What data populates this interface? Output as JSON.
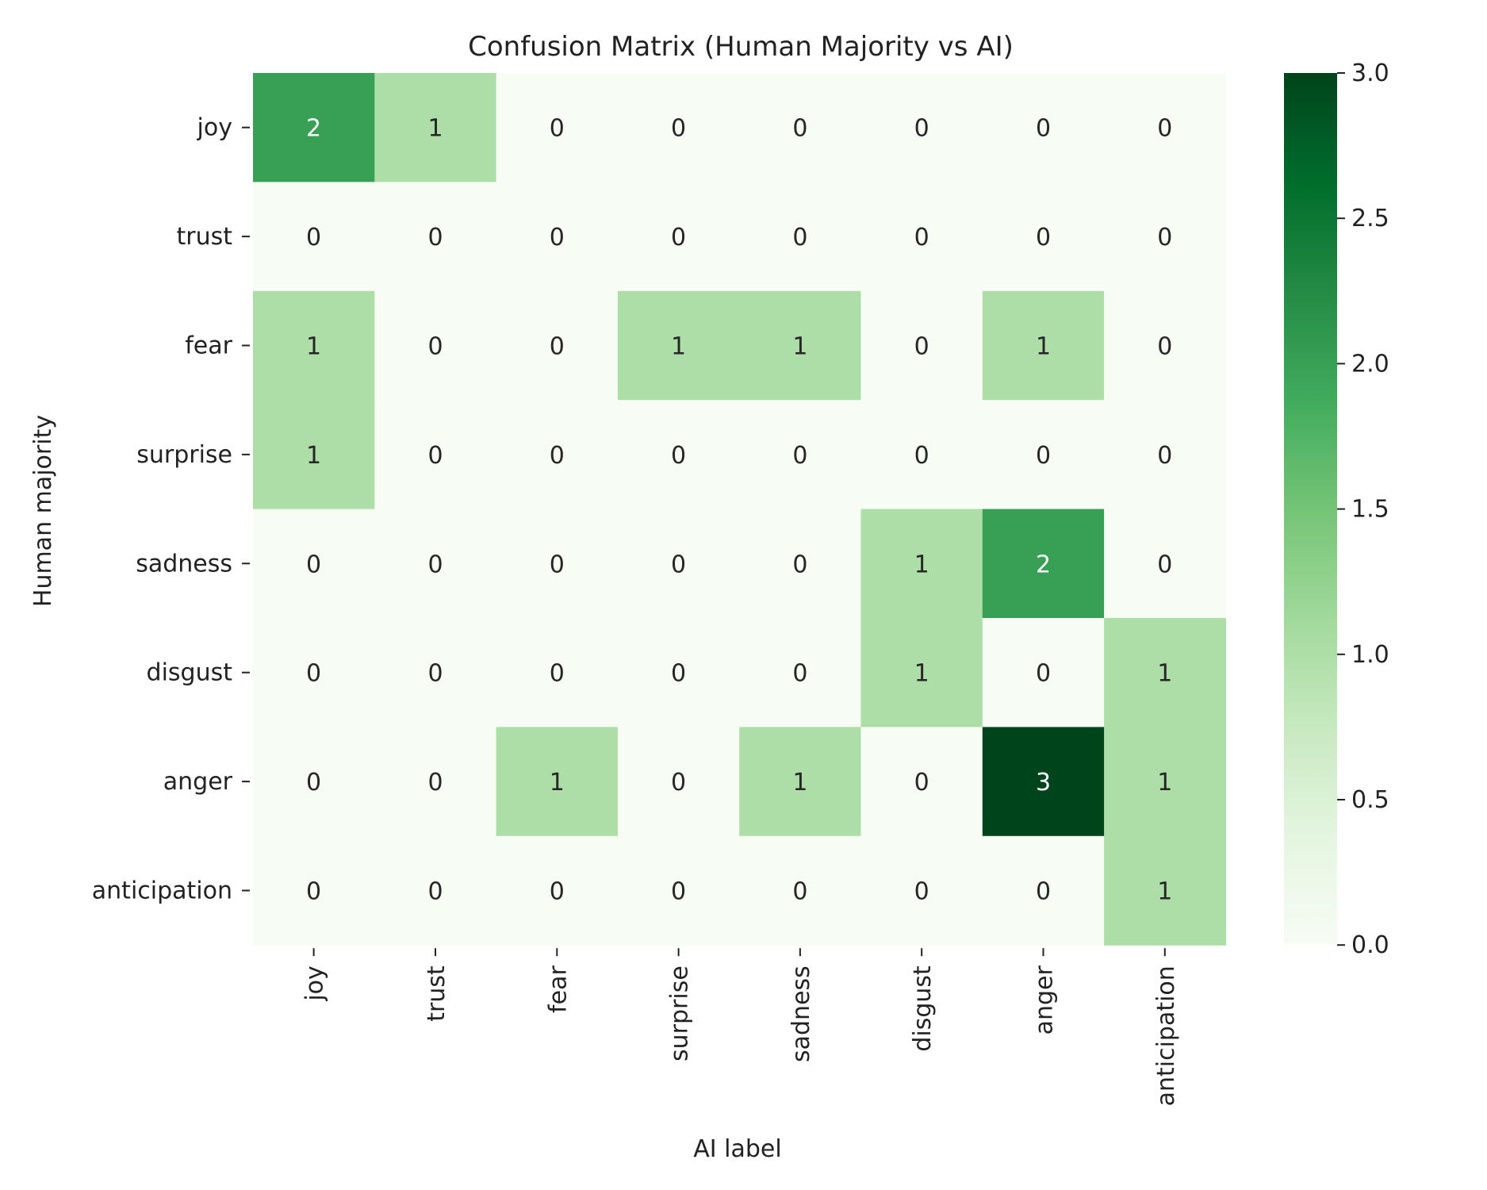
{
  "chart_data": {
    "type": "heatmap",
    "title": "Confusion Matrix (Human Majority vs AI)",
    "xlabel": "AI label",
    "ylabel": "Human majority",
    "x_categories": [
      "joy",
      "trust",
      "fear",
      "surprise",
      "sadness",
      "disgust",
      "anger",
      "anticipation"
    ],
    "y_categories": [
      "joy",
      "trust",
      "fear",
      "surprise",
      "sadness",
      "disgust",
      "anger",
      "anticipation"
    ],
    "values": [
      [
        2,
        1,
        0,
        0,
        0,
        0,
        0,
        0
      ],
      [
        0,
        0,
        0,
        0,
        0,
        0,
        0,
        0
      ],
      [
        1,
        0,
        0,
        1,
        1,
        0,
        1,
        0
      ],
      [
        1,
        0,
        0,
        0,
        0,
        0,
        0,
        0
      ],
      [
        0,
        0,
        0,
        0,
        0,
        1,
        2,
        0
      ],
      [
        0,
        0,
        0,
        0,
        0,
        1,
        0,
        1
      ],
      [
        0,
        0,
        1,
        0,
        1,
        0,
        3,
        1
      ],
      [
        0,
        0,
        0,
        0,
        0,
        0,
        0,
        1
      ]
    ],
    "colorbar": {
      "min": 0.0,
      "max": 3.0,
      "ticks": [
        "0.0",
        "0.5",
        "1.0",
        "1.5",
        "2.0",
        "2.5",
        "3.0"
      ],
      "colormap": "Greens"
    },
    "grid": false,
    "annotations": "cell counts"
  }
}
